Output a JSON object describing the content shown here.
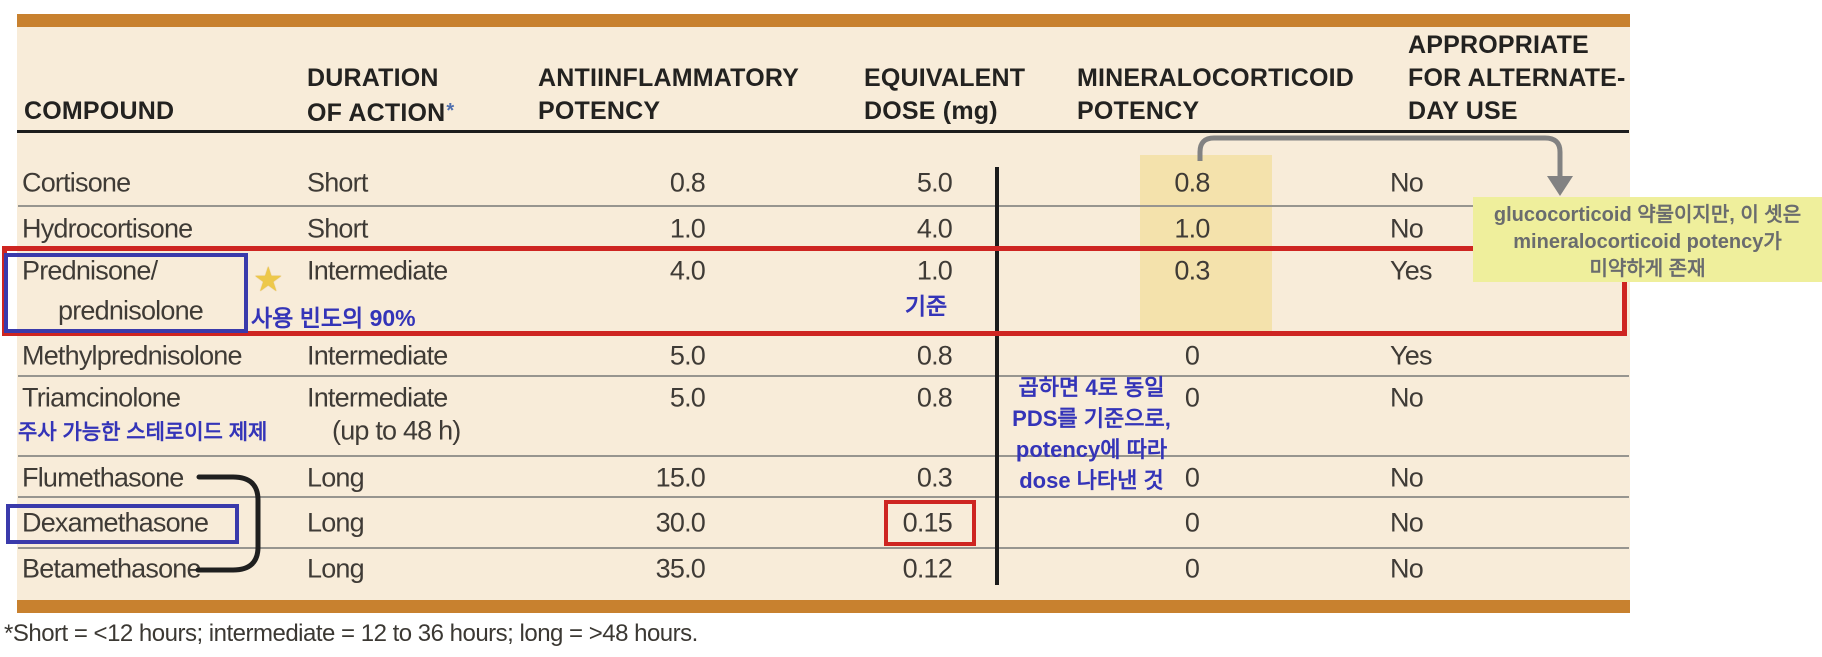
{
  "table": {
    "headers": [
      {
        "lines": [
          "COMPOUND"
        ]
      },
      {
        "lines": [
          "DURATION",
          "OF ACTION"
        ],
        "marker": "*"
      },
      {
        "lines": [
          "ANTIINFLAMMATORY",
          "POTENCY"
        ]
      },
      {
        "lines": [
          "EQUIVALENT",
          "DOSE (mg)"
        ]
      },
      {
        "lines": [
          "MINERALOCORTICOID",
          "POTENCY"
        ]
      },
      {
        "lines": [
          "APPROPRIATE",
          "FOR ALTERNATE-",
          "DAY USE"
        ]
      }
    ],
    "rows": [
      {
        "name": "Cortisone",
        "duration": "Short",
        "potency": "0.8",
        "dose": "5.0",
        "mineralo": "0.8",
        "altday": "No"
      },
      {
        "name": "Hydrocortisone",
        "duration": "Short",
        "potency": "1.0",
        "dose": "4.0",
        "mineralo": "1.0",
        "altday": "No"
      },
      {
        "name": "Prednisone/",
        "name2": "prednisolone",
        "duration": "Intermediate",
        "potency": "4.0",
        "dose": "1.0",
        "mineralo": "0.3",
        "altday": "Yes"
      },
      {
        "name": "Methylprednisolone",
        "duration": "Intermediate",
        "potency": "5.0",
        "dose": "0.8",
        "mineralo": "0",
        "altday": "Yes"
      },
      {
        "name": "Triamcinolone",
        "duration": "Intermediate",
        "duration2": "(up to 48 h)",
        "potency": "5.0",
        "dose": "0.8",
        "mineralo": "0",
        "altday": "No"
      },
      {
        "name": "Flumethasone",
        "duration": "Long",
        "potency": "15.0",
        "dose": "0.3",
        "mineralo": "0",
        "altday": "No"
      },
      {
        "name": "Dexamethasone",
        "duration": "Long",
        "potency": "30.0",
        "dose": "0.15",
        "mineralo": "0",
        "altday": "No"
      },
      {
        "name": "Betamethasone",
        "duration": "Long",
        "potency": "35.0",
        "dose": "0.12",
        "mineralo": "0",
        "altday": "No"
      }
    ],
    "footnote": "*Short = <12 hours; intermediate = 12 to 36 hours; long = >48 hours."
  },
  "annotations": {
    "star": "★",
    "usage_note": "사용 빈도의 90%",
    "baseline_note": "기준",
    "injectable_note": "주사 가능한 스테로이드 제제",
    "dose_note_lines": [
      "곱하면 4로 동일",
      "PDS를 기준으로,",
      "potency에 따라",
      "dose 나타낸 것"
    ],
    "mineralo_note_lines": [
      "glucocorticoid 약물이지만, 이 셋은",
      "mineralocorticoid potency가",
      "미약하게 존재"
    ]
  },
  "colors": {
    "table_bg": "#f8ecd9",
    "accent_bar": "#c8812f",
    "column_highlight": "#f4e2ac",
    "sticky_note_bg": "#efef9c",
    "annotation_blue": "#3434b8",
    "marker_blue": "#3a3aab",
    "marker_red": "#ce2521",
    "note_text_gray": "#6a6c6e",
    "arrow_gray": "#828282"
  }
}
